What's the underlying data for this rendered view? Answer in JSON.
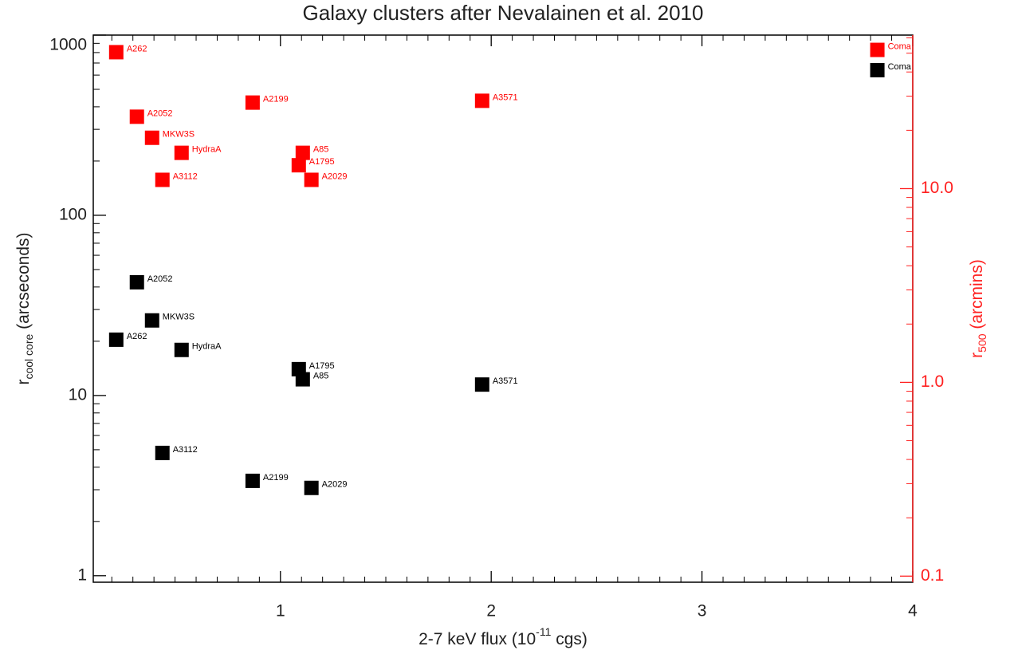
{
  "chart_data": {
    "type": "scatter",
    "title": "Galaxy clusters after Nevalainen et al. 2010",
    "xlabel": {
      "main": "2-7 keV flux (10",
      "sup": "-11",
      "rest": " cgs)"
    },
    "ylabel": {
      "main": "r",
      "sub": "cool core",
      "rest": " (arcseconds)"
    },
    "y2label": {
      "main": "r",
      "sub": "500",
      "rest": " (arcmins)"
    },
    "xlim": [
      0.112,
      4
    ],
    "xticks": [
      1,
      2,
      3,
      4
    ],
    "xminorticks": [
      0.2,
      0.3,
      0.4,
      0.5,
      0.6,
      0.7,
      0.8,
      0.9,
      1.1,
      1.2,
      1.3,
      1.4,
      1.5,
      1.6,
      1.7,
      1.8,
      1.9,
      2.1,
      2.2,
      2.3,
      2.4,
      2.5,
      2.6,
      2.7,
      2.8,
      2.9,
      3.1,
      3.2,
      3.3,
      3.4,
      3.5,
      3.6,
      3.7,
      3.8,
      3.9
    ],
    "ylim": [
      0.92,
      1000
    ],
    "yscale": "log",
    "yticks": [
      1,
      10,
      100,
      1000
    ],
    "yminorticks": [
      2,
      3,
      4,
      5,
      6,
      7,
      8,
      9,
      20,
      30,
      40,
      50,
      60,
      70,
      80,
      90,
      200,
      300,
      400,
      500,
      600,
      700,
      800,
      900
    ],
    "y2lim": [
      0.093,
      62
    ],
    "y2scale": "log",
    "y2ticks": [
      0.1,
      {
        "value": 1,
        "label": "1.0"
      },
      {
        "value": 10,
        "label": "10.0"
      }
    ],
    "y2minorticks": [
      0.2,
      0.3,
      0.4,
      0.5,
      0.6,
      0.7,
      0.8,
      0.9,
      2,
      3,
      4,
      5,
      6,
      7,
      8,
      9,
      20,
      30,
      40,
      50,
      60
    ],
    "y2color": "#ff2020",
    "series": [
      {
        "color": "#000000",
        "labels": [
          "Coma",
          "A2052",
          "MKW3S",
          "A262",
          "HydraA",
          "A1795",
          "A85",
          "A3571",
          "A3112",
          "A2199",
          "A2029"
        ],
        "x": [
          3.832,
          0.319,
          0.391,
          0.221,
          0.531,
          1.087,
          1.106,
          1.957,
          0.44,
          0.868,
          1.147
        ],
        "values": [
          639,
          42.5,
          26.1,
          20.4,
          17.9,
          14.0,
          12.3,
          11.5,
          4.8,
          3.36,
          3.07
        ]
      },
      {
        "color": "#ff0000",
        "axis": "y2",
        "labels": [
          "A262",
          "A2052",
          "MKW3S",
          "HydraA",
          "A3112",
          "A2199",
          "A85",
          "A1795",
          "A2029",
          "A3571",
          "Coma"
        ],
        "x": [
          0.221,
          0.319,
          0.391,
          0.531,
          0.44,
          0.868,
          1.106,
          1.087,
          1.147,
          1.957,
          3.832
        ],
        "values": [
          50.6,
          23.5,
          18.3,
          15.3,
          11.1,
          27.8,
          15.3,
          13.2,
          11.1,
          28.4,
          52
        ]
      }
    ]
  }
}
